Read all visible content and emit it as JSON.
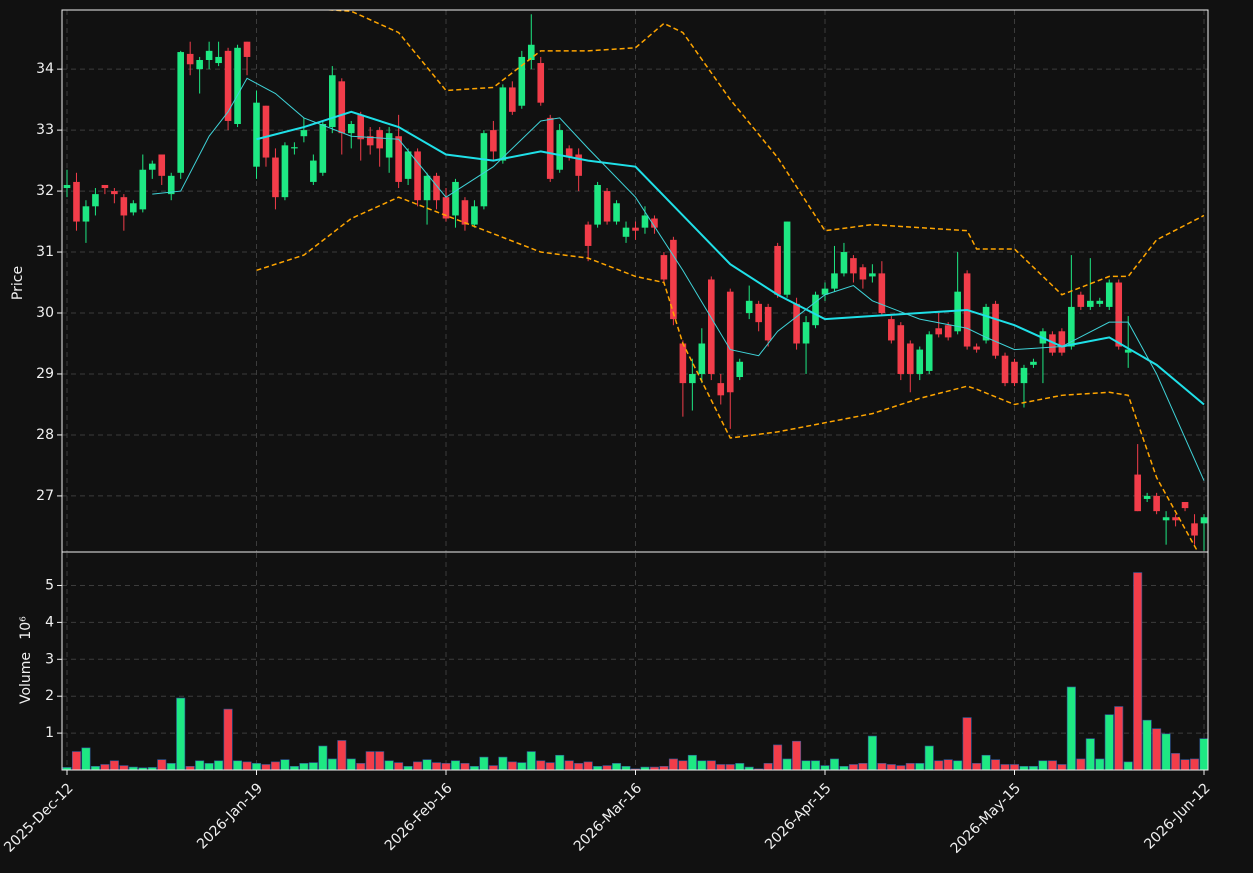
{
  "chart_data": [
    {
      "type": "candlestick",
      "y_label": "Price",
      "categories": [
        "2025-Dec-12",
        null,
        null,
        null,
        null,
        null,
        null,
        null,
        null,
        null,
        null,
        null,
        null,
        null,
        null,
        null,
        null,
        null,
        null,
        null,
        "2026-Jan-19",
        null,
        null,
        null,
        null,
        null,
        null,
        null,
        null,
        null,
        null,
        null,
        null,
        null,
        null,
        null,
        null,
        null,
        null,
        null,
        "2026-Feb-16",
        null,
        null,
        null,
        null,
        null,
        null,
        null,
        null,
        null,
        null,
        null,
        null,
        null,
        null,
        null,
        null,
        null,
        null,
        null,
        "2026-Mar-16",
        null,
        null,
        null,
        null,
        null,
        null,
        null,
        null,
        null,
        null,
        null,
        null,
        null,
        null,
        null,
        null,
        null,
        null,
        null,
        "2026-Apr-15",
        null,
        null,
        null,
        null,
        null,
        null,
        null,
        null,
        null,
        null,
        null,
        null,
        null,
        null,
        null,
        null,
        null,
        null,
        null,
        "2026-May-15",
        null,
        null,
        null,
        null,
        null,
        null,
        null,
        null,
        null,
        null,
        null,
        null,
        null,
        null,
        null,
        null,
        null,
        null,
        null,
        "2026-Jun-12"
      ],
      "open": [
        32.05,
        32.15,
        31.5,
        31.75,
        32.1,
        32.0,
        31.9,
        31.65,
        31.7,
        32.35,
        32.6,
        31.95,
        32.3,
        34.25,
        34.0,
        34.15,
        34.1,
        34.3,
        33.1,
        34.45,
        32.4,
        33.4,
        32.55,
        31.9,
        32.7,
        32.9,
        32.15,
        32.3,
        33.05,
        33.8,
        32.95,
        33.25,
        32.9,
        33.0,
        32.55,
        32.9,
        32.2,
        32.65,
        31.85,
        32.25,
        31.9,
        31.6,
        31.85,
        31.45,
        31.75,
        33.0,
        32.5,
        33.7,
        33.4,
        34.15,
        34.1,
        33.2,
        32.35,
        32.7,
        32.6,
        31.45,
        31.45,
        32.0,
        31.5,
        31.25,
        31.4,
        31.4,
        31.55,
        30.95,
        31.2,
        29.5,
        28.85,
        29.0,
        30.55,
        28.85,
        30.35,
        28.95,
        30.0,
        30.15,
        30.1,
        31.1,
        30.3,
        30.15,
        29.5,
        29.8,
        30.3,
        30.4,
        30.65,
        30.9,
        30.75,
        30.6,
        30.65,
        29.9,
        29.8,
        29.5,
        29.0,
        29.05,
        29.75,
        29.8,
        29.7,
        30.65,
        29.45,
        29.55,
        30.15,
        29.3,
        29.2,
        28.85,
        29.15,
        29.5,
        29.65,
        29.7,
        29.45,
        30.3,
        30.1,
        30.15,
        30.1,
        30.5,
        29.35,
        27.35,
        26.95,
        27.0,
        26.6,
        26.65,
        26.9,
        26.55,
        26.55
      ],
      "high": [
        32.35,
        32.3,
        31.85,
        32.05,
        32.1,
        32.05,
        31.95,
        31.85,
        32.6,
        32.5,
        32.6,
        32.3,
        34.3,
        34.45,
        34.2,
        34.45,
        34.45,
        34.35,
        34.4,
        34.45,
        33.65,
        33.4,
        32.7,
        32.8,
        32.8,
        33.2,
        32.6,
        33.15,
        34.05,
        33.85,
        33.15,
        33.3,
        33.05,
        33.05,
        33.05,
        33.25,
        32.7,
        32.7,
        32.3,
        32.3,
        32.05,
        32.2,
        31.9,
        31.85,
        33.0,
        33.15,
        33.75,
        33.8,
        34.3,
        34.9,
        34.2,
        33.25,
        33.1,
        32.75,
        32.7,
        31.5,
        32.15,
        32.05,
        31.85,
        31.5,
        31.5,
        31.75,
        31.6,
        31.0,
        31.25,
        29.55,
        29.25,
        29.75,
        30.6,
        29.0,
        30.4,
        29.25,
        30.45,
        30.2,
        30.15,
        31.15,
        31.5,
        30.25,
        29.95,
        30.35,
        30.5,
        31.1,
        31.15,
        30.95,
        30.8,
        30.8,
        30.85,
        29.95,
        29.85,
        29.55,
        29.45,
        29.7,
        30.0,
        29.85,
        31.0,
        30.7,
        29.5,
        30.15,
        30.2,
        29.35,
        29.25,
        29.15,
        29.25,
        29.75,
        29.7,
        29.75,
        30.95,
        30.35,
        30.9,
        30.25,
        30.55,
        30.55,
        29.95,
        27.85,
        27.05,
        27.05,
        26.75,
        26.7,
        26.9,
        26.7,
        26.7
      ],
      "low": [
        31.9,
        31.35,
        31.15,
        31.6,
        31.95,
        31.8,
        31.35,
        31.6,
        31.65,
        32.2,
        32.1,
        31.85,
        32.2,
        33.9,
        33.6,
        34.0,
        34.05,
        33.0,
        33.05,
        33.9,
        32.2,
        32.4,
        31.7,
        31.85,
        32.6,
        32.8,
        32.1,
        32.25,
        32.95,
        32.6,
        32.7,
        32.5,
        32.6,
        32.4,
        32.3,
        32.05,
        32.1,
        31.75,
        31.45,
        31.7,
        31.5,
        31.4,
        31.35,
        31.4,
        31.7,
        32.5,
        32.45,
        33.25,
        33.35,
        34.0,
        33.4,
        32.15,
        32.3,
        32.5,
        32.0,
        30.85,
        31.4,
        31.45,
        31.45,
        31.15,
        31.2,
        31.3,
        31.3,
        30.5,
        29.8,
        28.3,
        28.4,
        28.85,
        28.9,
        28.5,
        28.1,
        28.9,
        29.9,
        29.7,
        29.45,
        30.25,
        30.25,
        29.4,
        29.0,
        29.75,
        30.2,
        30.35,
        30.6,
        30.5,
        30.4,
        30.5,
        29.95,
        29.5,
        28.9,
        28.7,
        28.9,
        29.0,
        29.6,
        29.55,
        29.65,
        29.4,
        29.35,
        29.5,
        29.25,
        28.8,
        28.8,
        28.45,
        29.1,
        28.85,
        29.3,
        29.3,
        29.4,
        30.05,
        30.05,
        30.1,
        30.05,
        29.4,
        29.1,
        26.75,
        26.9,
        26.7,
        26.2,
        26.5,
        26.75,
        26.2,
        26.1
      ],
      "close": [
        32.1,
        31.5,
        31.75,
        31.95,
        32.05,
        31.95,
        31.6,
        31.8,
        32.35,
        32.45,
        32.25,
        32.25,
        34.28,
        34.08,
        34.15,
        34.3,
        34.2,
        33.15,
        34.35,
        34.2,
        33.45,
        32.55,
        31.9,
        32.75,
        32.72,
        33.0,
        32.5,
        33.1,
        33.9,
        32.95,
        33.1,
        32.85,
        32.75,
        32.7,
        32.95,
        32.15,
        32.65,
        31.85,
        32.25,
        31.85,
        31.55,
        32.15,
        31.45,
        31.75,
        32.95,
        32.65,
        33.7,
        33.3,
        34.2,
        34.4,
        33.45,
        32.2,
        33.0,
        32.55,
        32.25,
        31.1,
        32.1,
        31.5,
        31.8,
        31.4,
        31.35,
        31.6,
        31.4,
        30.55,
        29.9,
        28.85,
        29.0,
        29.5,
        29.0,
        28.65,
        28.7,
        29.2,
        30.2,
        29.85,
        29.55,
        30.3,
        31.5,
        29.5,
        29.85,
        30.3,
        30.4,
        30.65,
        31.0,
        30.65,
        30.55,
        30.65,
        30.0,
        29.55,
        29.0,
        29.0,
        29.4,
        29.65,
        29.65,
        29.6,
        30.35,
        29.45,
        29.4,
        30.1,
        29.3,
        28.85,
        28.85,
        29.1,
        29.2,
        29.7,
        29.35,
        29.35,
        30.1,
        30.1,
        30.2,
        30.2,
        30.5,
        29.45,
        29.4,
        26.75,
        27.0,
        26.75,
        26.65,
        26.6,
        26.8,
        26.35,
        26.65
      ],
      "up_color": "#1ee883",
      "down_color": "#f23d4a",
      "series": [
        {
          "color": "#1fe0e8",
          "width": 2,
          "dashed": false,
          "x": [
            20,
            25,
            30,
            35,
            40,
            45,
            50,
            55,
            60,
            65,
            70,
            75,
            80,
            85,
            90,
            95,
            100,
            105,
            110,
            115,
            120
          ],
          "values": [
            32.85,
            33.05,
            33.3,
            33.05,
            32.6,
            32.5,
            32.65,
            32.5,
            32.4,
            31.6,
            30.8,
            30.3,
            29.9,
            29.95,
            30.0,
            30.05,
            29.8,
            29.45,
            29.6,
            29.15,
            28.5
          ]
        },
        {
          "color": "#3fd3d8",
          "width": 1,
          "dashed": false,
          "x": [
            9,
            12,
            15,
            17,
            19,
            22,
            25,
            30,
            35,
            40,
            45,
            50,
            52,
            55,
            60,
            65,
            70,
            73,
            75,
            80,
            83,
            85,
            90,
            95,
            97,
            100,
            105,
            110,
            112,
            115,
            120
          ],
          "values": [
            31.95,
            32.0,
            32.9,
            33.3,
            33.85,
            33.6,
            33.2,
            32.9,
            32.85,
            31.9,
            32.4,
            33.15,
            33.2,
            32.7,
            31.9,
            30.7,
            29.4,
            29.3,
            29.7,
            30.3,
            30.45,
            30.2,
            29.9,
            29.75,
            29.6,
            29.4,
            29.45,
            29.85,
            29.85,
            29.0,
            27.25
          ]
        },
        {
          "color": "#ffa500",
          "width": 1.5,
          "dashed": true,
          "x": [
            20,
            25,
            30,
            35,
            40,
            45,
            50,
            55,
            60,
            63,
            65,
            70,
            75,
            80,
            85,
            90,
            95,
            96,
            100,
            105,
            110,
            112,
            115,
            120
          ],
          "values": [
            35.05,
            35.0,
            34.95,
            34.6,
            33.65,
            33.7,
            34.3,
            34.3,
            34.35,
            34.75,
            34.6,
            33.5,
            32.55,
            31.35,
            31.45,
            31.4,
            31.35,
            31.05,
            31.05,
            30.3,
            30.6,
            30.6,
            31.2,
            31.6
          ]
        },
        {
          "color": "#ffa500",
          "width": 1.5,
          "dashed": true,
          "x": [
            20,
            25,
            30,
            35,
            40,
            45,
            50,
            55,
            60,
            63,
            65,
            70,
            75,
            80,
            85,
            90,
            95,
            96,
            100,
            105,
            110,
            112,
            115,
            120
          ],
          "values": [
            30.7,
            30.95,
            31.55,
            31.9,
            31.6,
            31.3,
            31.0,
            30.9,
            30.6,
            30.5,
            29.5,
            27.95,
            28.05,
            28.2,
            28.35,
            28.6,
            28.8,
            28.75,
            28.5,
            28.65,
            28.7,
            28.65,
            27.3,
            25.9
          ]
        }
      ],
      "ylim": [
        26.08,
        34.97
      ],
      "yticks": [
        27,
        28,
        29,
        30,
        31,
        32,
        33,
        34
      ],
      "grid": true
    },
    {
      "type": "bar",
      "y_label": "Volume",
      "offset_label": "10⁶",
      "values": [
        0.07,
        0.5,
        0.6,
        0.1,
        0.15,
        0.25,
        0.12,
        0.08,
        0.06,
        0.07,
        0.28,
        0.18,
        1.95,
        0.1,
        0.25,
        0.18,
        0.25,
        1.65,
        0.25,
        0.22,
        0.18,
        0.15,
        0.22,
        0.28,
        0.1,
        0.18,
        0.2,
        0.65,
        0.3,
        0.8,
        0.3,
        0.18,
        0.5,
        0.5,
        0.25,
        0.2,
        0.1,
        0.22,
        0.28,
        0.2,
        0.18,
        0.25,
        0.18,
        0.1,
        0.35,
        0.12,
        0.35,
        0.22,
        0.2,
        0.5,
        0.25,
        0.2,
        0.4,
        0.25,
        0.18,
        0.22,
        0.1,
        0.12,
        0.18,
        0.1,
        0.03,
        0.08,
        0.08,
        0.1,
        0.3,
        0.25,
        0.4,
        0.25,
        0.25,
        0.15,
        0.15,
        0.18,
        0.08,
        0.03,
        0.18,
        0.68,
        0.3,
        0.78,
        0.25,
        0.25,
        0.12,
        0.3,
        0.1,
        0.15,
        0.18,
        0.92,
        0.18,
        0.15,
        0.12,
        0.18,
        0.18,
        0.65,
        0.25,
        0.28,
        0.25,
        1.42,
        0.18,
        0.4,
        0.28,
        0.15,
        0.15,
        0.1,
        0.1,
        0.25,
        0.25,
        0.15,
        2.25,
        0.3,
        0.85,
        0.3,
        1.5,
        1.72,
        0.22,
        5.35,
        1.35,
        1.12,
        0.98,
        0.45,
        0.28,
        0.3,
        0.85
      ],
      "ylim": [
        0,
        5.88
      ],
      "yticks": [
        1,
        2,
        3,
        4,
        5
      ],
      "grid": true
    }
  ]
}
